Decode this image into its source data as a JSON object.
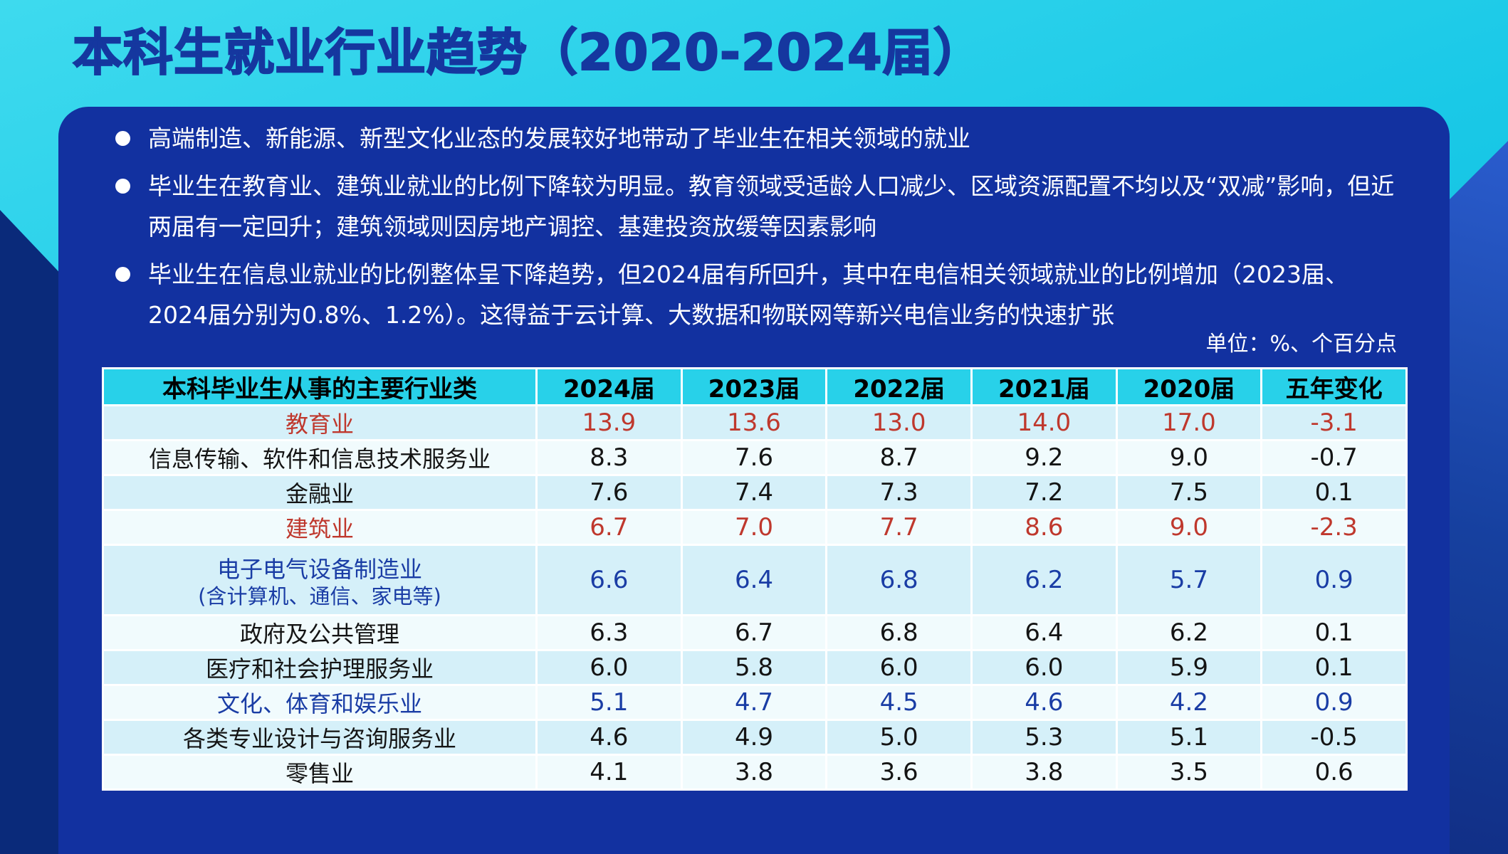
{
  "slide": {
    "title": "本科生就业行业趋势（2020-2024届）",
    "bullets": [
      "高端制造、新能源、新型文化业态的发展较好地带动了毕业生在相关领域的就业",
      "毕业生在教育业、建筑业就业的比例下降较为明显。教育领域受适龄人口减少、区域资源配置不均以及“双减”影响，但近两届有一定回升；建筑领域则因房地产调控、基建投资放缓等因素影响",
      "毕业生在信息业就业的比例整体呈下降趋势，但2024届有所回升，其中在电信相关领域就业的比例增加（2023届、2024届分别为0.8%、1.2%）。这得益于云计算、大数据和物联网等新兴电信业务的快速扩张"
    ],
    "unit_note": "单位：%、个百分点"
  },
  "chart_data": {
    "type": "table",
    "title": "本科毕业生从事的主要行业类",
    "unit": "单位：%、个百分点",
    "columns": [
      "本科毕业生从事的主要行业类",
      "2024届",
      "2023届",
      "2022届",
      "2021届",
      "2020届",
      "五年变化"
    ],
    "rows": [
      {
        "label": "教育业",
        "values": [
          "13.9",
          "13.6",
          "13.0",
          "14.0",
          "17.0",
          "-3.1"
        ],
        "emphasis": "red"
      },
      {
        "label": "信息传输、软件和信息技术服务业",
        "values": [
          "8.3",
          "7.6",
          "8.7",
          "9.2",
          "9.0",
          "-0.7"
        ],
        "emphasis": "black"
      },
      {
        "label": "金融业",
        "values": [
          "7.6",
          "7.4",
          "7.3",
          "7.2",
          "7.5",
          "0.1"
        ],
        "emphasis": "black"
      },
      {
        "label": "建筑业",
        "values": [
          "6.7",
          "7.0",
          "7.7",
          "8.6",
          "9.0",
          "-2.3"
        ],
        "emphasis": "red"
      },
      {
        "label": "电子电气设备制造业",
        "sublabel": "(含计算机、通信、家电等)",
        "values": [
          "6.6",
          "6.4",
          "6.8",
          "6.2",
          "5.7",
          "0.9"
        ],
        "emphasis": "blue"
      },
      {
        "label": "政府及公共管理",
        "values": [
          "6.3",
          "6.7",
          "6.8",
          "6.4",
          "6.2",
          "0.1"
        ],
        "emphasis": "black"
      },
      {
        "label": "医疗和社会护理服务业",
        "values": [
          "6.0",
          "5.8",
          "6.0",
          "6.0",
          "5.9",
          "0.1"
        ],
        "emphasis": "black"
      },
      {
        "label": "文化、体育和娱乐业",
        "values": [
          "5.1",
          "4.7",
          "4.5",
          "4.6",
          "4.2",
          "0.9"
        ],
        "emphasis": "blue"
      },
      {
        "label": "各类专业设计与咨询服务业",
        "values": [
          "4.6",
          "4.9",
          "5.0",
          "5.3",
          "5.1",
          "-0.5"
        ],
        "emphasis": "black"
      },
      {
        "label": "零售业",
        "values": [
          "4.1",
          "3.8",
          "3.6",
          "3.8",
          "3.5",
          "0.6"
        ],
        "emphasis": "black"
      }
    ]
  },
  "colors": {
    "cyan_background": "#1ac9e7",
    "panel_blue": "#1231a0",
    "title_blue": "#15379f",
    "header_cyan": "#28d1e9",
    "row_cyan": "#d5f0f9",
    "row_pale": "#f1fbfd",
    "text_red": "#bf382d",
    "text_blue": "#1a3da5",
    "text_black": "#141414",
    "bullet_text_white": "#ffffff"
  }
}
